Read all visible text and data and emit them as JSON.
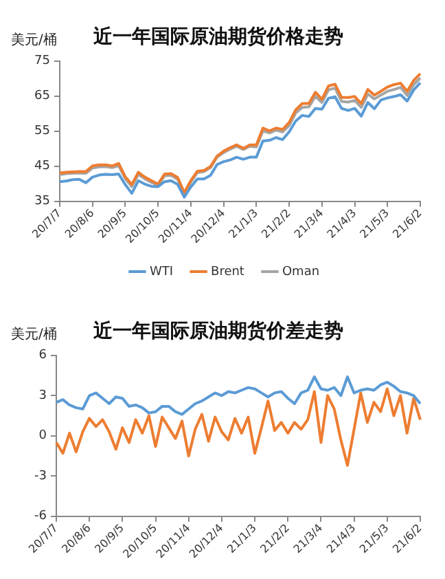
{
  "chart_data": [
    {
      "type": "line",
      "title": "近一年国际原油期货价格走势",
      "ylabel": "美元/桶",
      "legend": "bottom",
      "categories": [
        "20/7/7",
        null,
        null,
        null,
        null,
        "20/8/6",
        null,
        null,
        null,
        null,
        "20/9/5",
        null,
        null,
        null,
        null,
        "20/10/5",
        null,
        null,
        null,
        null,
        "20/11/4",
        null,
        null,
        null,
        null,
        "20/12/4",
        null,
        null,
        null,
        null,
        "21/1/3",
        null,
        null,
        null,
        null,
        "21/2/2",
        null,
        null,
        null,
        null,
        "21/3/4",
        null,
        null,
        null,
        null,
        "21/4/3",
        null,
        null,
        null,
        null,
        "21/5/3",
        null,
        null,
        null,
        null,
        "21/6/2"
      ],
      "ylim": [
        35,
        75
      ],
      "yticks": [
        35,
        45,
        55,
        65,
        75
      ],
      "series": [
        {
          "name": "WTI",
          "color": "#5b9bd5",
          "values": [
            40.6,
            40.8,
            41.2,
            41.3,
            40.3,
            41.9,
            42.5,
            42.7,
            42.6,
            42.8,
            39.8,
            37.3,
            40.9,
            39.9,
            39.3,
            39.2,
            40.6,
            40.9,
            39.8,
            36.2,
            39.1,
            41.4,
            41.4,
            42.4,
            45.5,
            46.3,
            46.8,
            47.6,
            47.0,
            47.6,
            47.6,
            52.2,
            52.4,
            53.2,
            52.6,
            54.8,
            57.9,
            59.5,
            59.2,
            61.5,
            61.3,
            64.4,
            64.8,
            61.5,
            60.9,
            61.5,
            59.3,
            63.2,
            61.4,
            63.9,
            64.5,
            64.9,
            65.4,
            63.6,
            66.8,
            68.8
          ]
        },
        {
          "name": "Brent",
          "color": "#ed7d31",
          "values": [
            43.1,
            43.3,
            43.4,
            43.5,
            43.5,
            45.1,
            45.4,
            45.4,
            45.1,
            45.8,
            42.0,
            39.8,
            43.3,
            41.9,
            40.9,
            39.9,
            42.8,
            42.9,
            41.8,
            37.5,
            40.9,
            43.6,
            43.8,
            44.9,
            47.9,
            49.3,
            50.3,
            51.1,
            50.1,
            51.1,
            51.1,
            55.9,
            55.1,
            55.9,
            55.5,
            57.5,
            61.1,
            62.9,
            62.9,
            66.1,
            64.1,
            67.9,
            68.4,
            64.6,
            64.6,
            64.9,
            62.9,
            66.9,
            65.3,
            66.4,
            67.6,
            68.3,
            68.7,
            66.4,
            69.5,
            71.4
          ]
        },
        {
          "name": "Oman",
          "color": "#a5a5a5",
          "values": [
            42.6,
            42.9,
            43.0,
            43.1,
            43.0,
            44.5,
            44.8,
            44.9,
            44.6,
            45.2,
            41.5,
            39.2,
            42.7,
            41.4,
            40.4,
            39.5,
            42.3,
            42.4,
            41.3,
            37.1,
            40.5,
            43.2,
            43.5,
            44.6,
            47.6,
            48.9,
            49.9,
            50.7,
            49.8,
            50.7,
            50.5,
            55.1,
            54.5,
            55.3,
            54.8,
            56.6,
            60.2,
            61.8,
            61.9,
            64.9,
            63.2,
            66.8,
            67.3,
            63.5,
            63.3,
            63.8,
            61.8,
            65.6,
            64.2,
            65.3,
            66.4,
            66.9,
            67.5,
            65.2,
            68.3,
            70.2
          ]
        }
      ]
    },
    {
      "type": "line",
      "title": "近一年国际原油期货价差走势",
      "ylabel": "美元/桶",
      "categories": [
        "20/7/7",
        null,
        null,
        null,
        null,
        "20/8/6",
        null,
        null,
        null,
        null,
        "20/9/5",
        null,
        null,
        null,
        null,
        "20/10/5",
        null,
        null,
        null,
        null,
        "20/11/4",
        null,
        null,
        null,
        null,
        "20/12/4",
        null,
        null,
        null,
        null,
        "21/1/3",
        null,
        null,
        null,
        null,
        "21/2/2",
        null,
        null,
        null,
        null,
        "21/3/4",
        null,
        null,
        null,
        null,
        "21/4/3",
        null,
        null,
        null,
        null,
        "21/5/3",
        null,
        null,
        null,
        null,
        "21/6/2"
      ],
      "ylim": [
        -6,
        6
      ],
      "yticks": [
        -6,
        -3,
        0,
        3,
        6
      ],
      "series": [
        {
          "color": "#5b9bd5",
          "values": [
            2.5,
            2.7,
            2.3,
            2.1,
            2.0,
            3.0,
            3.2,
            2.8,
            2.4,
            2.9,
            2.8,
            2.2,
            2.3,
            2.1,
            1.7,
            1.8,
            2.2,
            2.2,
            1.8,
            1.6,
            2.0,
            2.4,
            2.6,
            2.9,
            3.2,
            3.0,
            3.3,
            3.2,
            3.4,
            3.6,
            3.5,
            3.2,
            2.9,
            3.2,
            3.3,
            2.8,
            2.4,
            3.2,
            3.4,
            4.4,
            3.5,
            3.4,
            3.6,
            3.0,
            4.4,
            3.2,
            3.4,
            3.5,
            3.4,
            3.8,
            4.0,
            3.7,
            3.3,
            3.2,
            3.0,
            2.4
          ]
        },
        {
          "color": "#ed7d31",
          "values": [
            -0.5,
            -1.3,
            0.2,
            -1.2,
            0.3,
            1.3,
            0.7,
            1.2,
            0.3,
            -1.0,
            0.6,
            -0.5,
            1.2,
            0.2,
            1.5,
            -0.8,
            1.4,
            0.6,
            -0.2,
            1.1,
            -1.5,
            0.5,
            1.6,
            -0.4,
            1.4,
            0.3,
            -0.3,
            1.3,
            0.2,
            1.4,
            -1.3,
            0.6,
            2.6,
            0.4,
            1.0,
            0.2,
            1.0,
            0.5,
            1.2,
            3.3,
            -0.5,
            3.0,
            2.0,
            -0.3,
            -2.2,
            0.5,
            3.2,
            1.0,
            2.5,
            1.8,
            3.5,
            1.5,
            3.0,
            0.2,
            2.8,
            1.2
          ]
        }
      ]
    }
  ]
}
